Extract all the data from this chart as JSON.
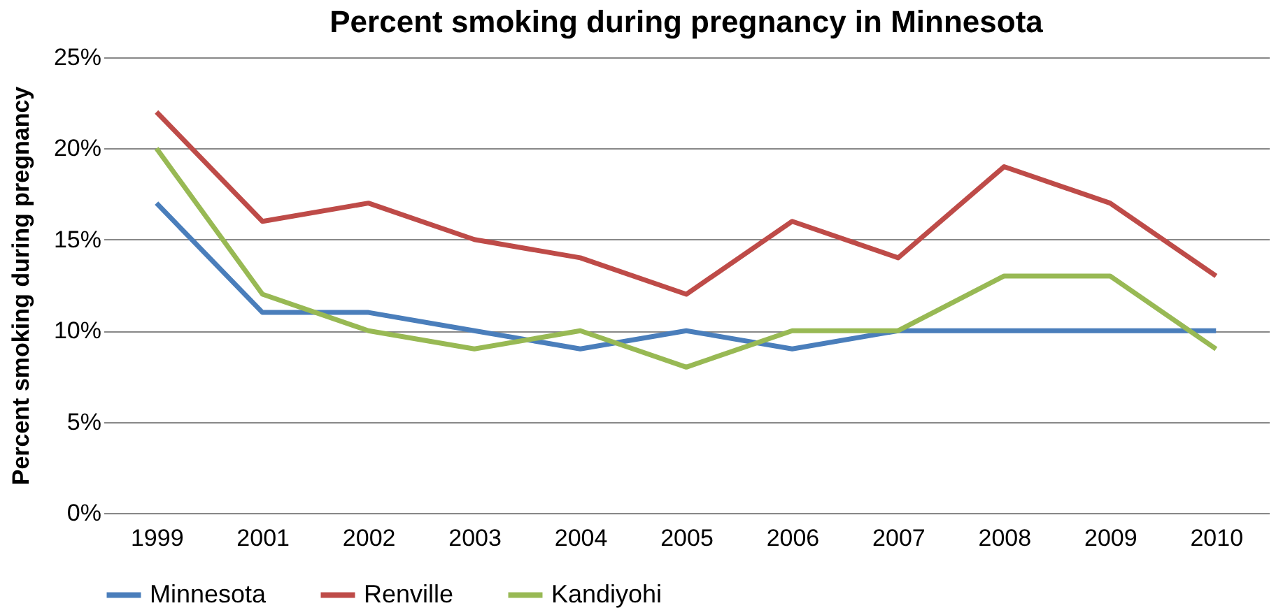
{
  "chart_data": {
    "type": "line",
    "title": "Percent smoking during pregnancy in Minnesota",
    "ylabel": "Percent smoking during pregnancy",
    "categories": [
      "1999",
      "2001",
      "2002",
      "2003",
      "2004",
      "2005",
      "2006",
      "2007",
      "2008",
      "2009",
      "2010"
    ],
    "series": [
      {
        "name": "Minnesota",
        "color": "#4a7ebb",
        "values": [
          17,
          11,
          11,
          10,
          9,
          10,
          9,
          10,
          10,
          10,
          10
        ]
      },
      {
        "name": "Renville",
        "color": "#be4b48",
        "values": [
          22,
          16,
          17,
          15,
          14,
          12,
          16,
          14,
          19,
          17,
          13
        ]
      },
      {
        "name": "Kandiyohi",
        "color": "#98b954",
        "values": [
          20,
          12,
          10,
          9,
          10,
          8,
          10,
          10,
          13,
          13,
          9
        ]
      }
    ],
    "ylim": [
      0,
      25
    ],
    "yticks": [
      {
        "value": 0,
        "label": "0%"
      },
      {
        "value": 5,
        "label": "5%"
      },
      {
        "value": 10,
        "label": "10%"
      },
      {
        "value": 15,
        "label": "15%"
      },
      {
        "value": 20,
        "label": "20%"
      },
      {
        "value": 25,
        "label": "25%"
      }
    ],
    "grid": "y",
    "legend": "bottom",
    "marker": "none",
    "line_style": "solid"
  }
}
